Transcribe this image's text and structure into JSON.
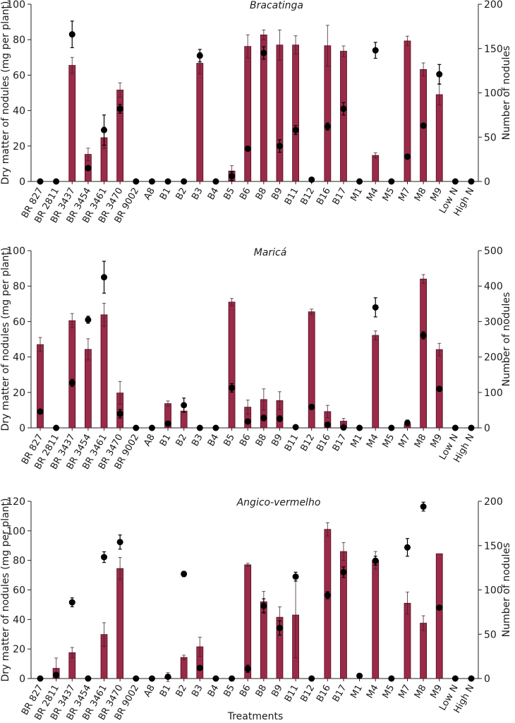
{
  "chart_data": [
    {
      "type": "bar",
      "title": "Bracatinga",
      "xlabel": "",
      "ylabel": "Dry matter of nodules (mg per plant)",
      "y2label": "Number of nodules",
      "ylim": [
        0,
        100
      ],
      "y2lim": [
        0,
        200
      ],
      "yticks": [
        0,
        20,
        40,
        60,
        80,
        100
      ],
      "y2ticks": [
        0,
        50,
        100,
        150,
        200
      ],
      "categories": [
        "BR 827",
        "BR 2811",
        "BR 3437",
        "BR 3454",
        "BR 3461",
        "BR 3470",
        "BR 9002",
        "A8",
        "B1",
        "B2",
        "B3",
        "B4",
        "B5",
        "B6",
        "B8",
        "B9",
        "B11",
        "B12",
        "B16",
        "B17",
        "M1",
        "M4",
        "M5",
        "M7",
        "M8",
        "M9",
        "Low N",
        "High N"
      ],
      "series": [
        {
          "name": "Dry matter of nodules (bars, left axis)",
          "kind": "bar",
          "values": [
            0,
            0,
            65.5,
            15.3,
            24.7,
            51.6,
            0,
            0,
            0,
            0,
            66.7,
            0,
            5.9,
            76.2,
            82.7,
            77.0,
            77.0,
            0,
            76.6,
            73.5,
            0,
            14.7,
            0,
            79.3,
            63.2,
            49.0,
            0,
            0
          ],
          "errors": [
            0,
            0,
            4.5,
            3.5,
            6.0,
            4.0,
            0,
            0,
            0,
            0,
            6.0,
            0,
            3.0,
            6.5,
            2.8,
            8.5,
            5.2,
            0,
            11.5,
            3.0,
            0,
            1.5,
            0,
            2.7,
            3.7,
            5.8,
            0,
            0
          ]
        },
        {
          "name": "Number of nodules (points, right axis)",
          "kind": "scatter",
          "values": [
            0,
            0,
            166,
            15,
            58,
            82,
            0,
            0,
            0,
            0,
            142,
            0,
            6,
            37,
            145,
            40,
            58,
            2,
            62,
            82,
            0,
            148,
            0,
            28,
            63,
            121,
            0,
            0
          ],
          "errors": [
            0,
            0,
            15,
            0,
            17,
            5,
            0,
            0,
            0,
            0,
            7,
            0,
            5,
            0,
            7,
            7,
            5,
            0,
            4,
            7,
            0,
            9,
            0,
            0,
            0,
            11,
            0,
            0
          ]
        }
      ]
    },
    {
      "type": "bar",
      "title": "Maricá",
      "xlabel": "",
      "ylabel": "Dry matter of nodules (mg per plant)",
      "y2label": "Number of nodules",
      "ylim": [
        0,
        100
      ],
      "y2lim": [
        0,
        500
      ],
      "yticks": [
        0,
        20,
        40,
        60,
        80,
        100
      ],
      "y2ticks": [
        0,
        100,
        200,
        300,
        400,
        500
      ],
      "categories": [
        "BR 827",
        "BR 2811",
        "BR 3437",
        "BR 3454",
        "BR 3461",
        "BR 3470",
        "BR 9002",
        "A8",
        "B1",
        "B2",
        "B3",
        "B4",
        "B5",
        "B6",
        "B8",
        "B9",
        "B11",
        "B12",
        "B16",
        "B17",
        "M1",
        "M4",
        "M5",
        "M7",
        "M8",
        "M9",
        "Low N",
        "High N"
      ],
      "series": [
        {
          "name": "Dry matter of nodules (bars, left axis)",
          "kind": "bar",
          "values": [
            47.0,
            0,
            60.5,
            44.3,
            63.8,
            19.7,
            0,
            0,
            13.7,
            9.5,
            0,
            0,
            71.0,
            11.7,
            16.0,
            15.4,
            0,
            65.5,
            9.2,
            3.8,
            0,
            52.2,
            0,
            2.0,
            84.0,
            44.2,
            0,
            0
          ],
          "errors": [
            4.0,
            0,
            4.0,
            6.0,
            6.5,
            6.5,
            0,
            0,
            1.5,
            0,
            0,
            0,
            2.0,
            4.0,
            6.0,
            5.0,
            0,
            1.5,
            3.5,
            1.5,
            0,
            2.5,
            0,
            0,
            2.5,
            3.5,
            0,
            0
          ]
        },
        {
          "name": "Number of nodules (points, right axis)",
          "kind": "scatter",
          "values": [
            46,
            0,
            127,
            305,
            425,
            40,
            0,
            0,
            12,
            64,
            0,
            0,
            113,
            18,
            28,
            26,
            2,
            59,
            9,
            1,
            0,
            340,
            0,
            14,
            261,
            110,
            0,
            0
          ],
          "errors": [
            0,
            0,
            10,
            10,
            45,
            12,
            0,
            0,
            0,
            20,
            0,
            0,
            12,
            6,
            8,
            8,
            0,
            0,
            0,
            0,
            0,
            27,
            0,
            8,
            10,
            0,
            0,
            0
          ]
        }
      ]
    },
    {
      "type": "bar",
      "title": "Angico-vermelho",
      "xlabel": "Treatments",
      "ylabel": "Dry matter of nodules (mg per plant)",
      "y2label": "Number of nodules",
      "ylim": [
        0,
        120
      ],
      "y2lim": [
        0,
        200
      ],
      "yticks": [
        0,
        20,
        40,
        60,
        80,
        100,
        120
      ],
      "y2ticks": [
        0,
        50,
        100,
        150,
        200
      ],
      "categories": [
        "BR 827",
        "BR 2811",
        "BR 3437",
        "BR 3454",
        "BR 3461",
        "BR 3470",
        "BR 9002",
        "A8",
        "B1",
        "B2",
        "B3",
        "B4",
        "B5",
        "B6",
        "B8",
        "B9",
        "B11",
        "B12",
        "B16",
        "B17",
        "M1",
        "M4",
        "M5",
        "M7",
        "M8",
        "M9",
        "Low N",
        "High N"
      ],
      "series": [
        {
          "name": "Dry matter of nodules (bars, left axis)",
          "kind": "bar",
          "values": [
            0,
            6.9,
            17.5,
            0,
            29.8,
            74.5,
            0,
            0,
            1.0,
            14.3,
            21.5,
            0,
            0,
            77.0,
            52.0,
            41.5,
            43.0,
            0,
            101.0,
            86.0,
            0,
            80.0,
            0,
            51.0,
            37.5,
            84.5,
            0,
            0
          ],
          "errors": [
            0,
            7.0,
            3.5,
            0,
            8.0,
            7.5,
            0,
            0,
            3.0,
            1.5,
            6.5,
            0,
            0,
            1.0,
            7.0,
            7.0,
            29.0,
            0,
            4.5,
            6.0,
            0,
            6.0,
            0,
            7.5,
            5.0,
            0,
            0,
            0
          ]
        },
        {
          "name": "Number of nodules (points, right axis)",
          "kind": "scatter",
          "values": [
            0,
            4,
            86,
            0,
            137,
            154,
            0,
            0,
            2,
            118,
            12,
            0,
            0,
            11,
            82,
            57,
            115,
            0,
            94,
            120,
            3,
            133,
            0,
            148,
            194,
            80,
            0,
            0
          ],
          "errors": [
            0,
            0,
            5,
            0,
            6,
            8,
            0,
            0,
            0,
            3,
            0,
            0,
            0,
            4,
            8,
            8,
            5,
            0,
            4,
            6,
            0,
            5,
            0,
            10,
            5,
            0,
            0,
            0
          ]
        }
      ]
    }
  ],
  "colors": {
    "bar_fill": "#9b2a48",
    "point": "#000000"
  }
}
